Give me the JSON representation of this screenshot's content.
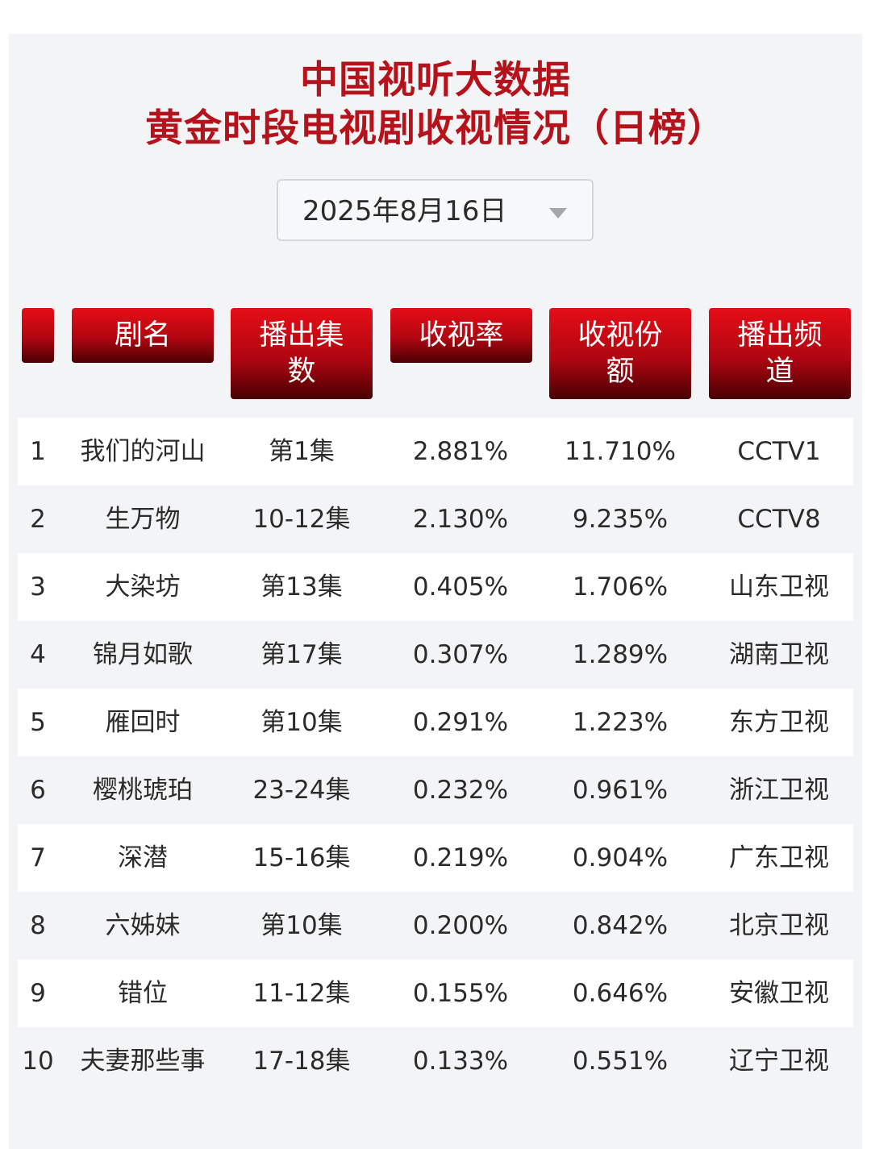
{
  "title": {
    "line1": "中国视听大数据",
    "line2": "黄金时段电视剧收视情况（日榜）"
  },
  "date_selector": {
    "value": "2025年8月16日",
    "icon": "triangle-down-icon"
  },
  "table": {
    "headers": {
      "rank": "",
      "name": "剧名",
      "episodes": [
        "播出集",
        "数"
      ],
      "rating": "收视率",
      "share": [
        "收视份",
        "额"
      ],
      "channel": [
        "播出频",
        "道"
      ]
    },
    "rows": [
      {
        "rank": "1",
        "name": "我们的河山",
        "episodes": "第1集",
        "rating": "2.881%",
        "share": "11.710%",
        "channel": "CCTV1"
      },
      {
        "rank": "2",
        "name": "生万物",
        "episodes": "10-12集",
        "rating": "2.130%",
        "share": "9.235%",
        "channel": "CCTV8"
      },
      {
        "rank": "3",
        "name": "大染坊",
        "episodes": "第13集",
        "rating": "0.405%",
        "share": "1.706%",
        "channel": "山东卫视"
      },
      {
        "rank": "4",
        "name": "锦月如歌",
        "episodes": "第17集",
        "rating": "0.307%",
        "share": "1.289%",
        "channel": "湖南卫视"
      },
      {
        "rank": "5",
        "name": "雁回时",
        "episodes": "第10集",
        "rating": "0.291%",
        "share": "1.223%",
        "channel": "东方卫视"
      },
      {
        "rank": "6",
        "name": "樱桃琥珀",
        "episodes": "23-24集",
        "rating": "0.232%",
        "share": "0.961%",
        "channel": "浙江卫视"
      },
      {
        "rank": "7",
        "name": "深潜",
        "episodes": "15-16集",
        "rating": "0.219%",
        "share": "0.904%",
        "channel": "广东卫视"
      },
      {
        "rank": "8",
        "name": "六姊妹",
        "episodes": "第10集",
        "rating": "0.200%",
        "share": "0.842%",
        "channel": "北京卫视"
      },
      {
        "rank": "9",
        "name": "错位",
        "episodes": "11-12集",
        "rating": "0.155%",
        "share": "0.646%",
        "channel": "安徽卫视"
      },
      {
        "rank": "10",
        "name": "夫妻那些事",
        "episodes": "17-18集",
        "rating": "0.133%",
        "share": "0.551%",
        "channel": "辽宁卫视"
      }
    ]
  },
  "colors": {
    "title": "#b5121b",
    "header_gradient_top": "#e60e16",
    "header_gradient_bottom": "#4a0003",
    "panel_bg": "#f3f4f6",
    "row_alt_bg": "#ffffff"
  }
}
